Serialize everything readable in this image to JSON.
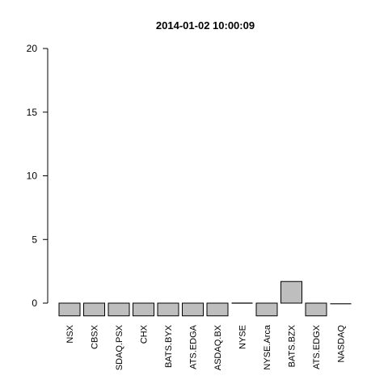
{
  "chart_data": {
    "type": "bar",
    "title": "2014-01-02 10:00:09",
    "xlabel": "",
    "ylabel": "",
    "ylim": [
      -1,
      20
    ],
    "yticks": [
      0,
      5,
      10,
      15,
      20
    ],
    "grid": false,
    "legend": "none",
    "bar_color": "#bebebe",
    "categories": [
      "NSX",
      "CBSX",
      "SDAQ.PSX",
      "CHX",
      "BATS.BYX",
      "ATS.EDGA",
      "ASDAQ.BX",
      "NYSE",
      "NYSE.Arca",
      "BATS.BZX",
      "ATS.EDGX",
      "NASDAQ"
    ],
    "values": [
      -1,
      -1,
      -1,
      -1,
      -1,
      -1,
      -1,
      0,
      -1,
      1.7,
      -1,
      -0.05
    ]
  }
}
